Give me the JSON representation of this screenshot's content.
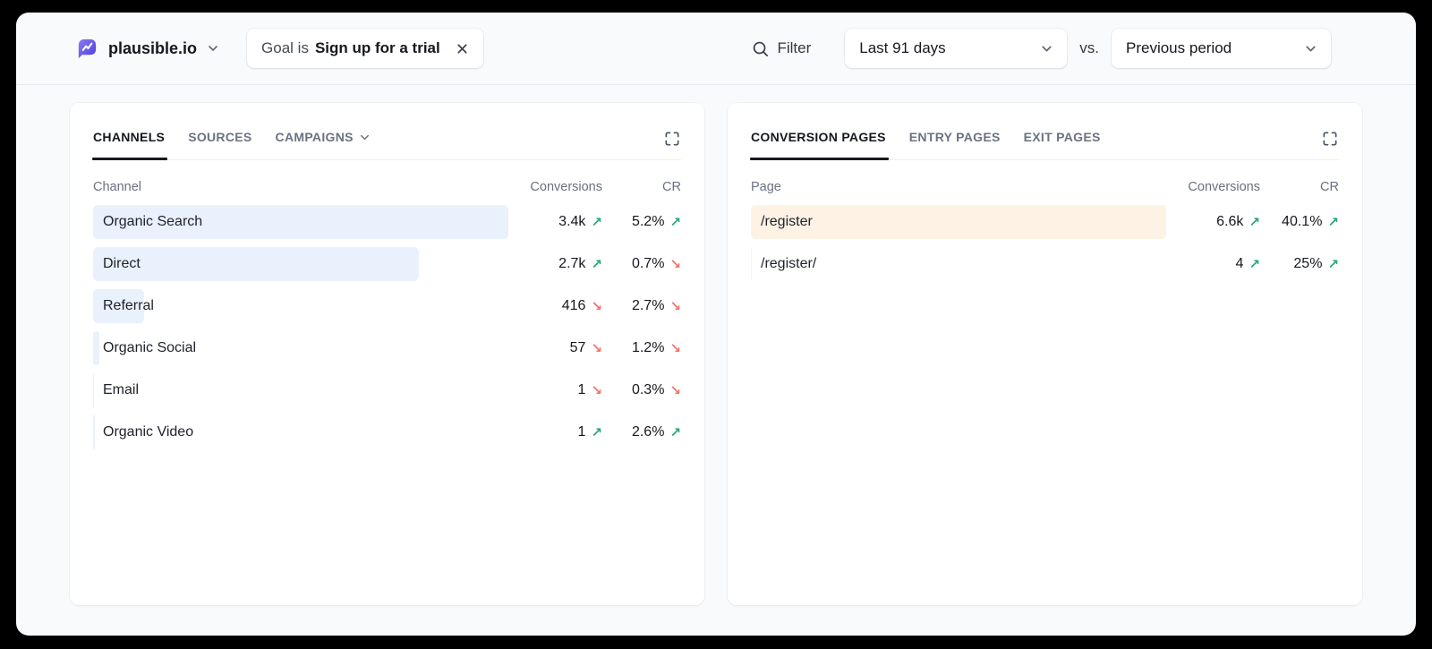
{
  "colors": {
    "brand_purple": "#5850ec",
    "trend_up_green": "#2ca876",
    "trend_down_red": "#f4716b",
    "bar_blue": "#e9f1fc",
    "bar_orange": "#fdf2e4",
    "page_background": "#f9fafb"
  },
  "icons": {
    "trend_up": "↗",
    "trend_down": "↘"
  },
  "topbar": {
    "site_name": "plausible.io",
    "goal_chip": {
      "prefix": "Goal is",
      "value": "Sign up for a trial"
    },
    "filter_label": "Filter",
    "date_range_value": "Last 91 days",
    "vs_label": "vs.",
    "comparison_value": "Previous period"
  },
  "left_panel": {
    "tabs": [
      {
        "label": "CHANNELS",
        "active": true
      },
      {
        "label": "SOURCES",
        "active": false
      },
      {
        "label": "CAMPAIGNS",
        "active": false,
        "has_dropdown": true
      }
    ],
    "columns": {
      "name": "Channel",
      "conversions": "Conversions",
      "cr": "CR"
    },
    "rows": [
      {
        "label": "Organic Search",
        "conversions": "3.4k",
        "conversions_trend": "up",
        "cr": "5.2%",
        "cr_trend": "up",
        "bar_pct": 100
      },
      {
        "label": "Direct",
        "conversions": "2.7k",
        "conversions_trend": "up",
        "cr": "0.7%",
        "cr_trend": "down",
        "bar_pct": 78.5
      },
      {
        "label": "Referral",
        "conversions": "416",
        "conversions_trend": "down",
        "cr": "2.7%",
        "cr_trend": "down",
        "bar_pct": 12.2
      },
      {
        "label": "Organic Social",
        "conversions": "57",
        "conversions_trend": "down",
        "cr": "1.2%",
        "cr_trend": "down",
        "bar_pct": 1.6
      },
      {
        "label": "Email",
        "conversions": "1",
        "conversions_trend": "down",
        "cr": "0.3%",
        "cr_trend": "down",
        "bar_pct": 0.3
      },
      {
        "label": "Organic Video",
        "conversions": "1",
        "conversions_trend": "up",
        "cr": "2.6%",
        "cr_trend": "up",
        "bar_pct": 0.4
      }
    ]
  },
  "right_panel": {
    "tabs": [
      {
        "label": "CONVERSION PAGES",
        "active": true
      },
      {
        "label": "ENTRY PAGES",
        "active": false
      },
      {
        "label": "EXIT PAGES",
        "active": false
      }
    ],
    "columns": {
      "name": "Page",
      "conversions": "Conversions",
      "cr": "CR"
    },
    "rows": [
      {
        "label": "/register",
        "conversions": "6.6k",
        "conversions_trend": "up",
        "cr": "40.1%",
        "cr_trend": "up",
        "bar_pct": 100
      },
      {
        "label": "/register/",
        "conversions": "4",
        "conversions_trend": "up",
        "cr": "25%",
        "cr_trend": "up",
        "bar_pct": 0.15
      }
    ]
  }
}
